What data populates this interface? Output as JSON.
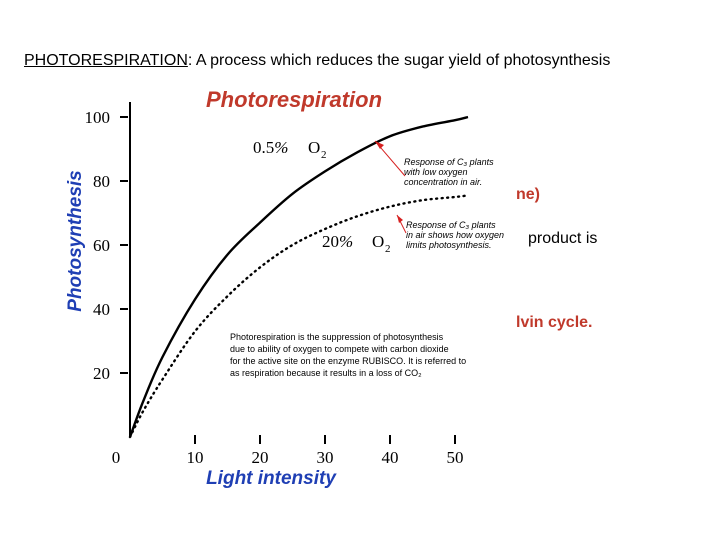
{
  "heading": {
    "keyword": "PHOTORESPIRATION",
    "rest": ": A process which reduces the sugar yield of photosynthesis"
  },
  "background_fragments": {
    "frag1": "ne)",
    "frag2": "product is",
    "frag3": "lvin cycle."
  },
  "colors": {
    "title": "#c0392b",
    "axis_label": "#1f3fb4",
    "arrow": "#d62020",
    "background_red_text": "#c0392b"
  },
  "chart_data": {
    "type": "line",
    "title": "Photorespiration",
    "xlabel": "Light intensity",
    "ylabel": "Photosynthesis",
    "xlim": [
      0,
      50
    ],
    "ylim": [
      0,
      100
    ],
    "x_ticks": [
      0,
      10,
      20,
      30,
      40,
      50
    ],
    "y_ticks": [
      20,
      40,
      60,
      80,
      100
    ],
    "grid": false,
    "series": [
      {
        "name": "0.5% O2",
        "style": "solid",
        "x": [
          0,
          2,
          5,
          10,
          15,
          20,
          25,
          30,
          35,
          40,
          45,
          50,
          52
        ],
        "y": [
          0,
          11,
          25,
          43,
          57,
          67,
          76,
          83,
          89,
          94,
          97,
          99,
          100
        ]
      },
      {
        "name": "20% O2",
        "style": "dotted",
        "x": [
          0,
          2,
          5,
          10,
          15,
          20,
          25,
          30,
          35,
          40,
          45,
          50,
          52
        ],
        "y": [
          0,
          8,
          18,
          33,
          44,
          53,
          60,
          65,
          69,
          72,
          74,
          75,
          75.5
        ]
      }
    ],
    "curve_labels": [
      {
        "prefix": "0.5",
        "pct": "%",
        "gas": "O",
        "sub": "2"
      },
      {
        "prefix": "20",
        "pct": "%",
        "gas": "O",
        "sub": "2"
      }
    ],
    "annotations": [
      {
        "lines": [
          "Response of C₃ plants",
          "with low oxygen",
          "concentration in air."
        ]
      },
      {
        "lines": [
          "Response of C₃ plants",
          "in air shows how oxygen",
          "limits photosynthesis."
        ]
      },
      {
        "lines": [
          "Photorespiration is the suppression of photosynthesis",
          "due to ability of oxygen to compete with carbon dioxide",
          "for the active site on the enzyme RUBISCO. It is referred to",
          "as respiration because it results in a loss of CO₂"
        ]
      }
    ]
  }
}
